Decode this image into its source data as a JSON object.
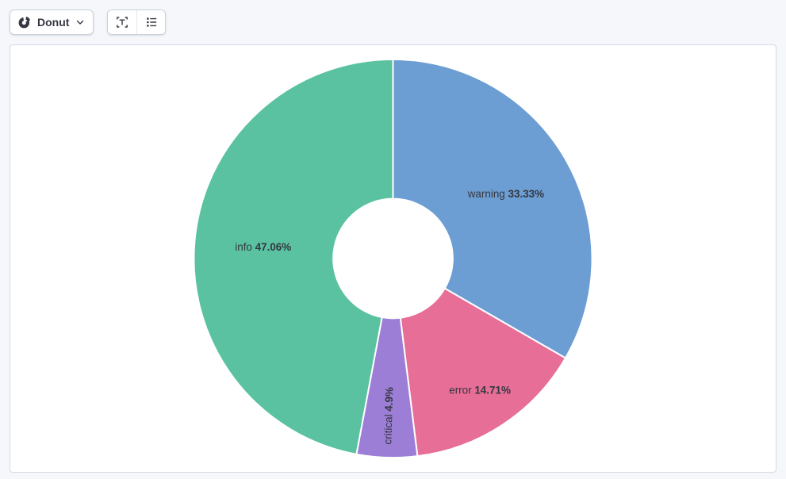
{
  "toolbar": {
    "chart_type": {
      "label": "Donut",
      "icon": "donut-chart-icon"
    },
    "buttons": [
      {
        "name": "value-labels",
        "icon": "value-labels-icon"
      },
      {
        "name": "legend",
        "icon": "legend-icon"
      }
    ]
  },
  "chart_data": {
    "type": "pie",
    "variant": "donut",
    "title": "",
    "slices": [
      {
        "label": "warning",
        "value": 33.33,
        "pct_label": "33.33%",
        "color": "#6d9ed3"
      },
      {
        "label": "error",
        "value": 14.71,
        "pct_label": "14.71%",
        "color": "#e76e96"
      },
      {
        "label": "critical",
        "value": 4.9,
        "pct_label": "4.9%",
        "color": "#9c7ed6"
      },
      {
        "label": "info",
        "value": 47.06,
        "pct_label": "47.06%",
        "color": "#5ac2a0"
      }
    ],
    "start_angle_deg": 0,
    "direction": "clockwise",
    "inner_radius_ratio": 0.3,
    "slice_stroke": "#ffffff",
    "label_color": "#343741",
    "legend": "none"
  }
}
